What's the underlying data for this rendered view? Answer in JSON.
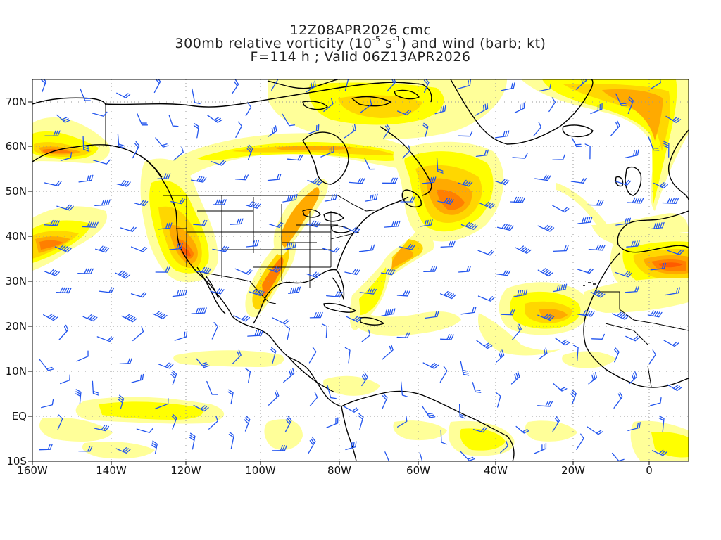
{
  "title": {
    "line1": "12Z08APR2026 cmc",
    "line2_prefix": "300mb relative vorticity (10",
    "line2_exp1": "-5",
    "line2_mid": " s",
    "line2_exp2": "-1",
    "line2_suffix": ") and wind (barb; kt)",
    "line3": "F=114 h ; Valid 06Z13APR2026"
  },
  "axes": {
    "lat_labels": [
      "70N",
      "60N",
      "50N",
      "40N",
      "30N",
      "20N",
      "10N",
      "EQ",
      "10S"
    ],
    "lon_labels": [
      "160W",
      "140W",
      "120W",
      "100W",
      "80W",
      "60W",
      "40W",
      "20W",
      "0"
    ]
  },
  "colors": {
    "light_yellow": "#ffff99",
    "yellow": "#ffff00",
    "gold": "#ffd700",
    "orange": "#ffaa00",
    "dark_orange": "#ff7f00",
    "red_orange": "#ff5a00",
    "barb_color": "#2255ee",
    "coast_color": "#000000",
    "grid_color": "#999999"
  }
}
